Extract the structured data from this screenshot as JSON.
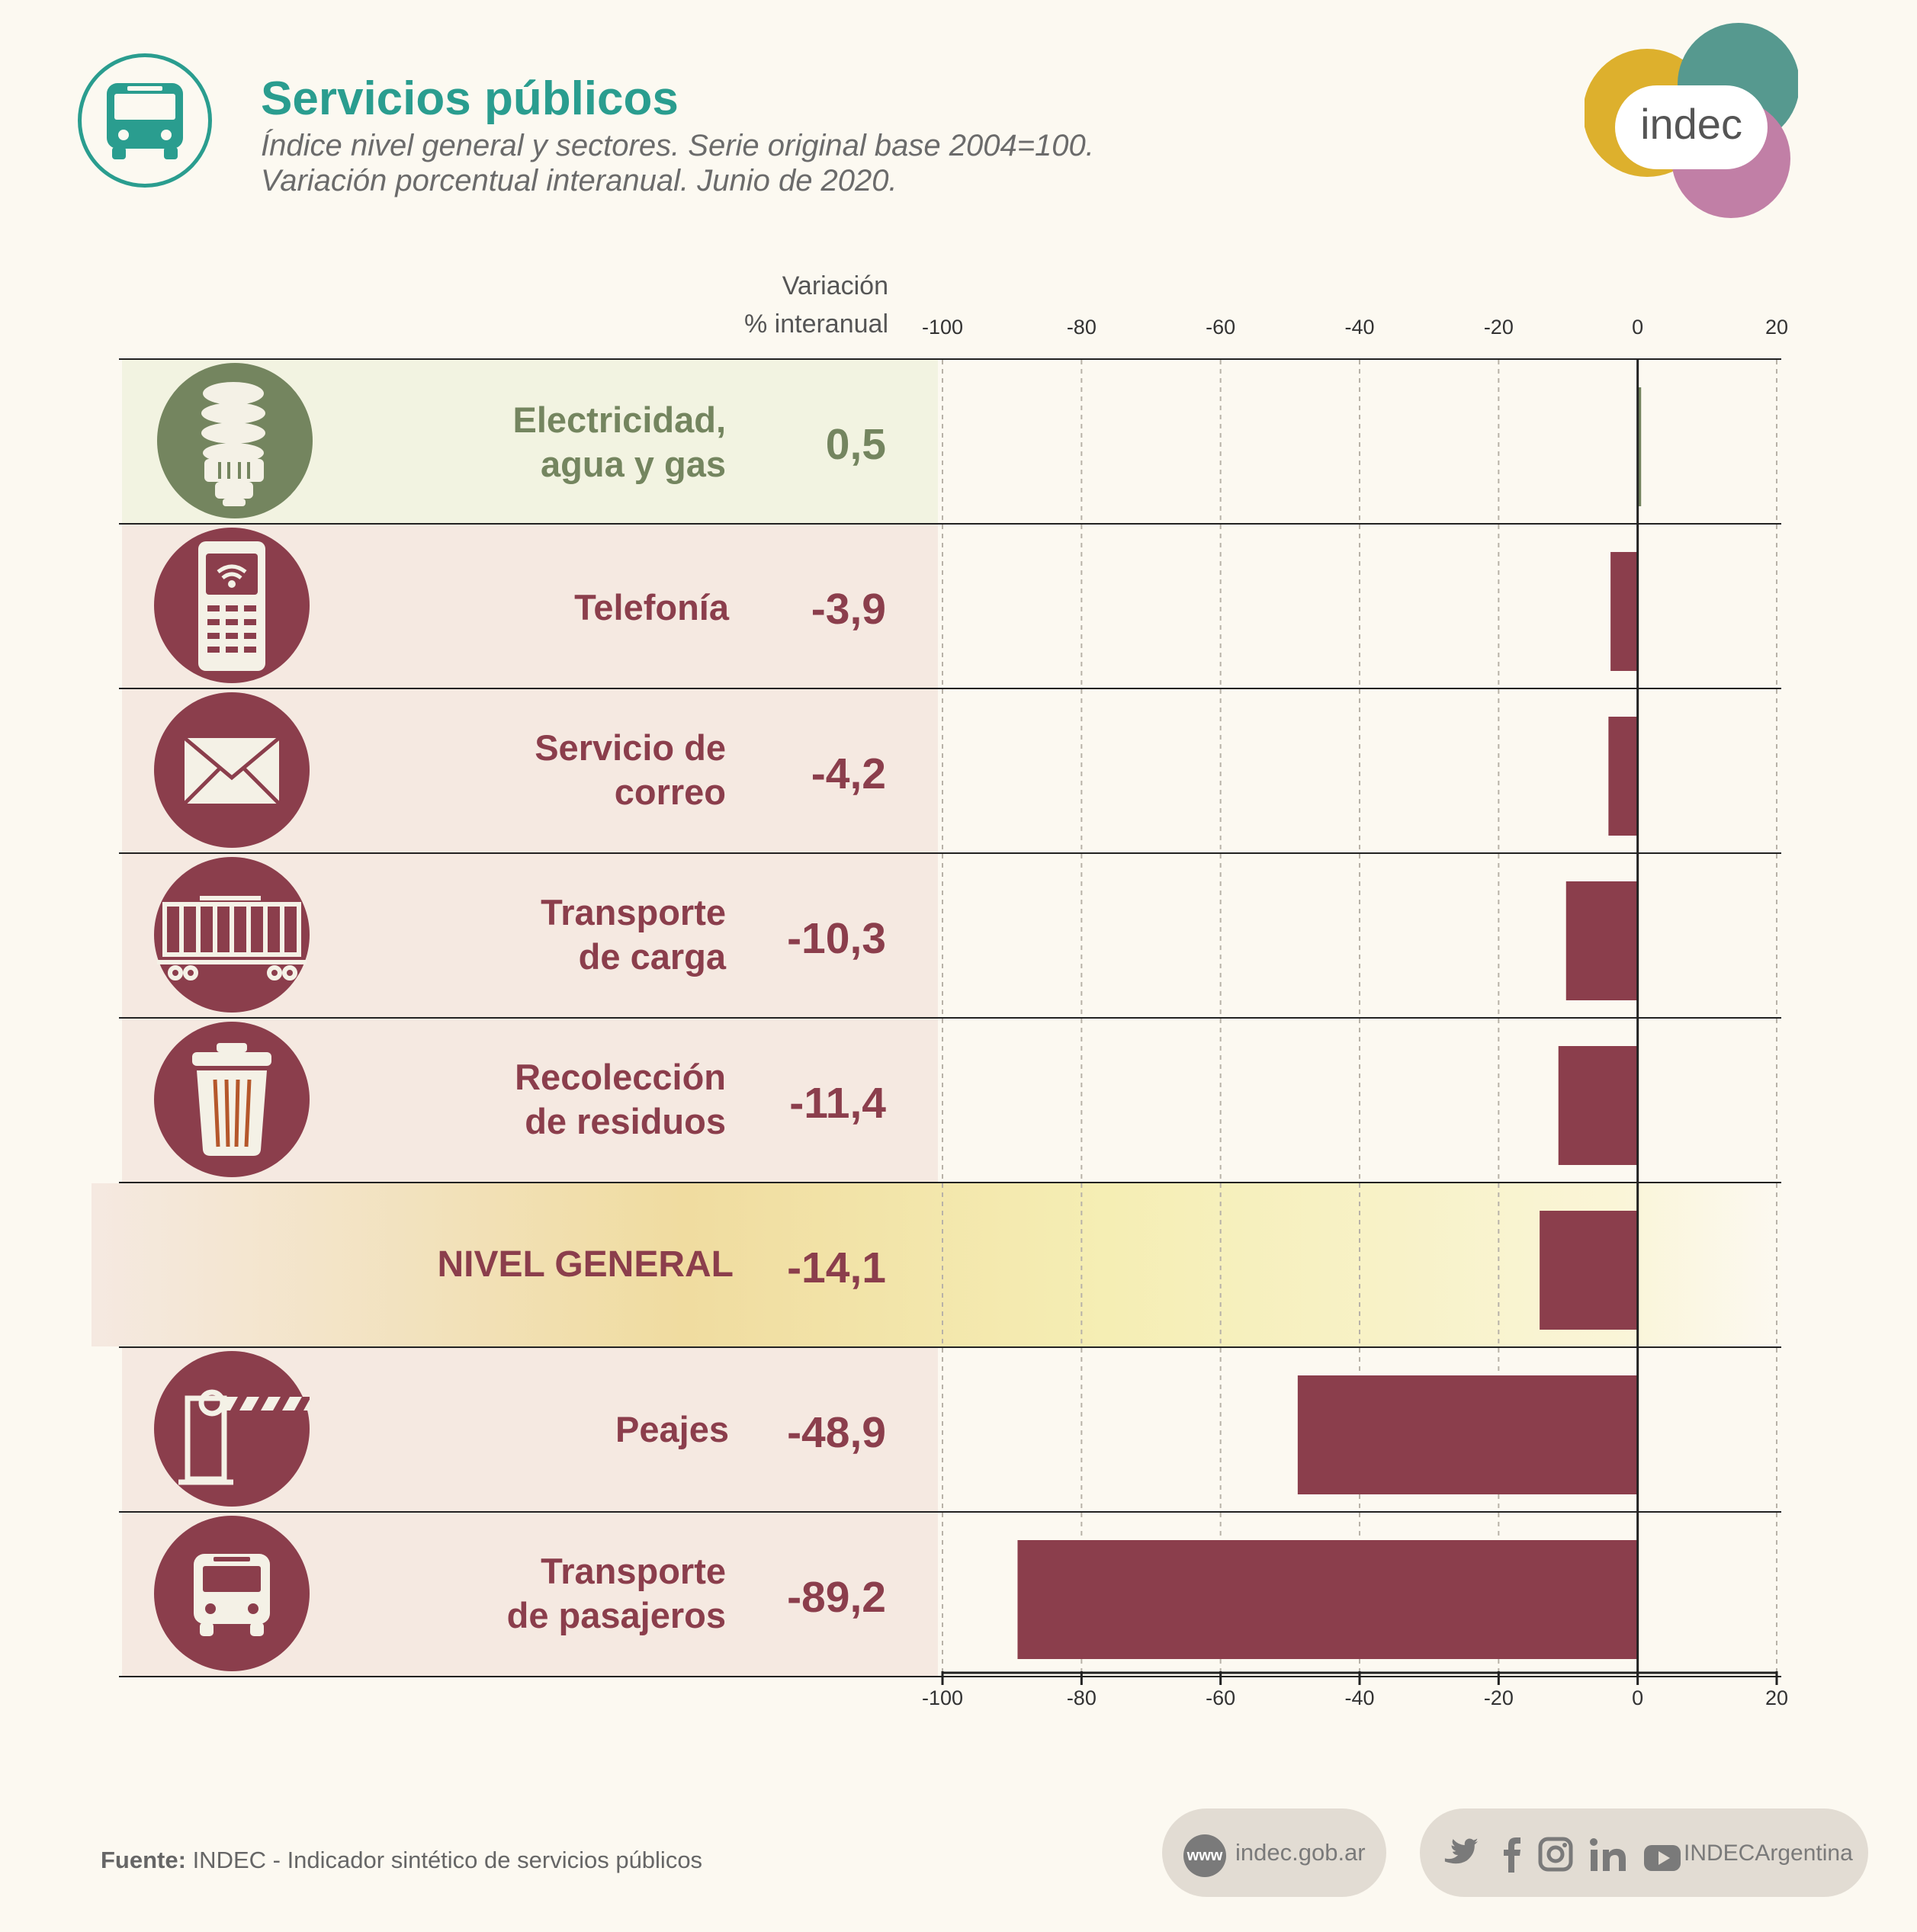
{
  "header": {
    "title": "Servicios públicos",
    "subtitle_1": "Índice nivel general y sectores. Serie original base 2004=100.",
    "subtitle_2": "Variación porcentual interanual. Junio de 2020.",
    "logo_text": "indec"
  },
  "column_header": {
    "line_1": "Variación",
    "line_2": "% interanual"
  },
  "rows": [
    {
      "label_1": "Electricidad,",
      "label_2": "agua y gas",
      "value_text": "0,5",
      "icon": "lightbulb-icon"
    },
    {
      "label_1": "Telefonía",
      "label_2": "",
      "value_text": "-3,9",
      "icon": "phone-icon"
    },
    {
      "label_1": "Servicio de",
      "label_2": "correo",
      "value_text": "-4,2",
      "icon": "envelope-icon"
    },
    {
      "label_1": "Transporte",
      "label_2": "de carga",
      "value_text": "-10,3",
      "icon": "freight-wagon-icon"
    },
    {
      "label_1": "Recolección",
      "label_2": "de residuos",
      "value_text": "-11,4",
      "icon": "trash-can-icon"
    },
    {
      "label_1": "NIVEL GENERAL",
      "label_2": "",
      "value_text": "-14,1",
      "icon": ""
    },
    {
      "label_1": "Peajes",
      "label_2": "",
      "value_text": "-48,9",
      "icon": "toll-barrier-icon"
    },
    {
      "label_1": "Transporte",
      "label_2": "de pasajeros",
      "value_text": "-89,2",
      "icon": "bus-icon"
    }
  ],
  "chart_data": {
    "type": "bar",
    "orientation": "horizontal",
    "categories": [
      "Electricidad, agua y gas",
      "Telefonía",
      "Servicio de correo",
      "Transporte de carga",
      "Recolección de residuos",
      "NIVEL GENERAL",
      "Peajes",
      "Transporte de pasajeros"
    ],
    "values": [
      0.5,
      -3.9,
      -4.2,
      -10.3,
      -11.4,
      -14.1,
      -48.9,
      -89.2
    ],
    "xlim": [
      -100,
      20
    ],
    "xticks": [
      -100,
      -80,
      -60,
      -40,
      -20,
      0,
      20
    ],
    "tick_labels": [
      "-100",
      "-80",
      "-60",
      "-40",
      "-20",
      "0",
      "20"
    ],
    "grid": "vertical dashed",
    "colors": {
      "positive": "#74855f",
      "negative": "#8b3e4c",
      "highlight": "#f5eaa6"
    }
  },
  "footer": {
    "source_label": "Fuente:",
    "source_text": "INDEC - Indicador sintético de servicios públicos",
    "www_badge": "www",
    "website": "indec.gob.ar",
    "social_handle": "INDECArgentina",
    "social_icons": [
      "twitter-icon",
      "facebook-icon",
      "instagram-icon",
      "linkedin-icon",
      "youtube-icon"
    ]
  },
  "colors": {
    "brand_teal": "#2a9d8f",
    "row_negative_bg": "#f5e9e1",
    "row_positive_bg": "#f2f3e1",
    "label_negative": "#8b3e4c",
    "label_positive": "#74855f"
  }
}
